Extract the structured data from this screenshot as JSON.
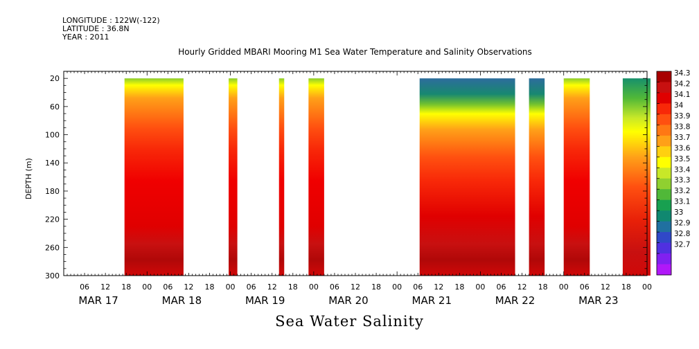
{
  "header": {
    "longitude": "LONGITUDE : 122W(-122)",
    "latitude": "LATITUDE : 36.8N",
    "year": "YEAR : 2011"
  },
  "chart_data": {
    "type": "heatmap",
    "title": "Hourly Gridded MBARI Mooring M1 Sea Water Temperature and Salinity Observations",
    "variable_label": "Sea Water Salinity",
    "ylabel": "DEPTH (m)",
    "ylim": [
      300,
      10
    ],
    "y_ticks": [
      20,
      60,
      100,
      140,
      180,
      220,
      260,
      300
    ],
    "x_hour_ticks": [
      "06",
      "12",
      "18",
      "00",
      "06",
      "12",
      "18",
      "00",
      "06",
      "12",
      "18",
      "00",
      "06",
      "12",
      "18",
      "00",
      "06",
      "12",
      "18",
      "00",
      "06",
      "12",
      "18",
      "00",
      "06",
      "12",
      "18",
      "00"
    ],
    "x_day_labels": [
      "MAR 17",
      "MAR 18",
      "MAR 19",
      "MAR 20",
      "MAR 21",
      "MAR 22",
      "MAR 23"
    ],
    "data_segments_hours": [
      [
        17.5,
        34.5
      ],
      [
        47.5,
        50
      ],
      [
        62,
        63.5
      ],
      [
        70.5,
        75
      ],
      [
        102.5,
        130
      ],
      [
        134,
        138.5
      ],
      [
        144,
        151.5
      ],
      [
        161,
        169
      ]
    ],
    "colorbar": {
      "levels": [
        34.3,
        34.2,
        34.1,
        34,
        33.9,
        33.8,
        33.7,
        33.6,
        33.5,
        33.4,
        33.3,
        33.2,
        33.1,
        33,
        32.9,
        32.8,
        32.7
      ],
      "colors": [
        "#a80000",
        "#c81010",
        "#e00000",
        "#f82808",
        "#ff5010",
        "#ff7814",
        "#ffa018",
        "#ffd010",
        "#ffff00",
        "#c8e828",
        "#90d030",
        "#50b838",
        "#18a050",
        "#108870",
        "#2070a0",
        "#3048c8",
        "#5030e0",
        "#8020f0",
        "#b018f8"
      ]
    }
  }
}
